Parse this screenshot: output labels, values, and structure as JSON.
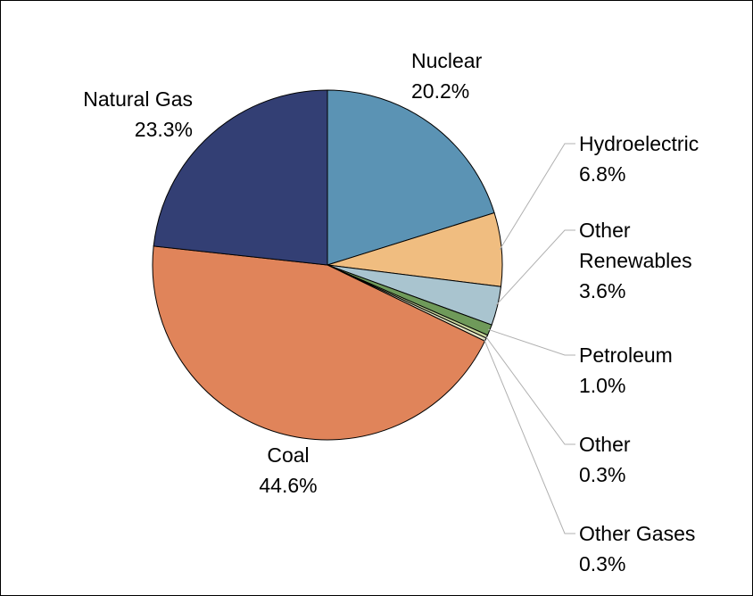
{
  "chart_data": {
    "type": "pie",
    "categories": [
      "Nuclear",
      "Hydroelectric",
      "Other Renewables",
      "Petroleum",
      "Other",
      "Other Gases",
      "Coal",
      "Natural Gas"
    ],
    "values": [
      20.2,
      6.8,
      3.6,
      1.0,
      0.3,
      0.3,
      44.6,
      23.3
    ],
    "value_labels": [
      "20.2%",
      "6.8%",
      "3.6%",
      "1.0%",
      "0.3%",
      "0.3%",
      "44.6%",
      "23.3%"
    ],
    "colors": [
      "#5b93b4",
      "#f0bd80",
      "#a9c4cf",
      "#6f9a5a",
      "#c8d69b",
      "#e4e4c4",
      "#e0845a",
      "#333f74"
    ]
  }
}
